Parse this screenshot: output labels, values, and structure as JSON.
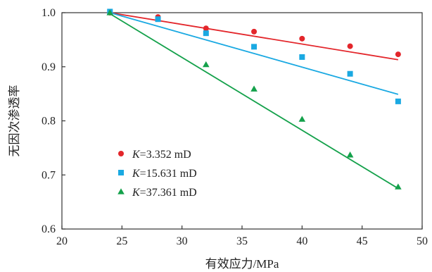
{
  "chart_data": {
    "type": "scatter",
    "xlabel": "有效应力/MPa",
    "ylabel": "无因次渗透率",
    "xlim": [
      20,
      50
    ],
    "ylim": [
      0.6,
      1.0
    ],
    "xticks": [
      20,
      25,
      30,
      35,
      40,
      45,
      50
    ],
    "yticks": [
      0.6,
      0.7,
      0.8,
      0.9,
      1.0
    ],
    "grid": false,
    "legend_position": "bottom-left",
    "series": [
      {
        "name": "K=3.352 mD",
        "k_symbol": "K",
        "k_value": "=3.352 mD",
        "marker": "circle",
        "color": "#e3262b",
        "points": [
          [
            24,
            1.0
          ],
          [
            28,
            0.992
          ],
          [
            32,
            0.971
          ],
          [
            36,
            0.965
          ],
          [
            40,
            0.952
          ],
          [
            44,
            0.938
          ],
          [
            48,
            0.923
          ]
        ],
        "fit": [
          [
            24,
            1.0
          ],
          [
            48,
            0.913
          ]
        ]
      },
      {
        "name": "K=15.631 mD",
        "k_symbol": "K",
        "k_value": "=15.631 mD",
        "marker": "square",
        "color": "#1aa9e2",
        "points": [
          [
            24,
            1.002
          ],
          [
            28,
            0.988
          ],
          [
            32,
            0.962
          ],
          [
            36,
            0.937
          ],
          [
            40,
            0.918
          ],
          [
            44,
            0.887
          ],
          [
            48,
            0.836
          ]
        ],
        "fit": [
          [
            24,
            1.0
          ],
          [
            48,
            0.849
          ]
        ]
      },
      {
        "name": "K=37.361 mD",
        "k_symbol": "K",
        "k_value": "=37.361 mD",
        "marker": "triangle",
        "color": "#14a14b",
        "points": [
          [
            24,
            1.0
          ],
          [
            32,
            0.904
          ],
          [
            36,
            0.859
          ],
          [
            40,
            0.803
          ],
          [
            44,
            0.737
          ],
          [
            48,
            0.678
          ]
        ],
        "fit": [
          [
            24,
            0.998
          ],
          [
            48,
            0.675
          ]
        ]
      }
    ]
  }
}
